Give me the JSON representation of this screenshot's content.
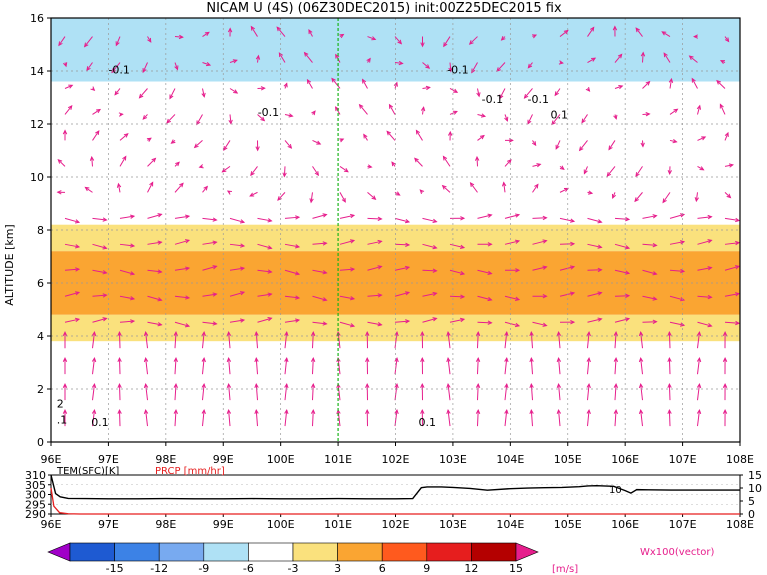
{
  "chart_data": {
    "title": "NICAM U (4S) (06Z30DEC2015) init:00Z25DEC2015 fix",
    "main": {
      "type": "heatmap",
      "ylabel": "ALTITUDE [km]",
      "xlim": [
        96,
        108
      ],
      "ylim": [
        0,
        16
      ],
      "x_ticks": [
        "96E",
        "97E",
        "98E",
        "99E",
        "100E",
        "101E",
        "102E",
        "103E",
        "104E",
        "105E",
        "106E",
        "107E",
        "108E"
      ],
      "y_ticks": [
        "0",
        "2",
        "4",
        "6",
        "8",
        "10",
        "12",
        "14",
        "16"
      ],
      "marker_longitude": 101,
      "bands": [
        {
          "y0": 13.6,
          "y1": 16.0,
          "u": -6
        },
        {
          "y0": 12.3,
          "y1": 13.6,
          "u": -3
        },
        {
          "y0": 8.2,
          "y1": 12.3,
          "u": 0
        },
        {
          "y0": 7.2,
          "y1": 8.2,
          "u": 3
        },
        {
          "y0": 4.8,
          "y1": 7.2,
          "u": 6
        },
        {
          "y0": 3.8,
          "y1": 4.8,
          "u": 3
        },
        {
          "y0": 0.0,
          "y1": 3.8,
          "u": 0
        }
      ],
      "contour_labels": [
        {
          "x": 97.0,
          "y": 13.9,
          "text": "-0.1"
        },
        {
          "x": 99.6,
          "y": 12.3,
          "text": "-0.1"
        },
        {
          "x": 102.9,
          "y": 13.9,
          "text": "-0.1"
        },
        {
          "x": 103.5,
          "y": 12.8,
          "text": "-0.1"
        },
        {
          "x": 104.3,
          "y": 12.8,
          "text": "-0.1"
        },
        {
          "x": 104.7,
          "y": 12.2,
          "text": "0.1"
        },
        {
          "x": 96.7,
          "y": 0.6,
          "text": "0.1"
        },
        {
          "x": 102.4,
          "y": 0.6,
          "text": "0.1"
        },
        {
          "x": 96.1,
          "y": 1.3,
          "text": "2"
        },
        {
          "x": 96.1,
          "y": 0.7,
          "text": ".1"
        }
      ]
    },
    "bottom": {
      "type": "line",
      "label_tem": "TEM(SFC)[K]",
      "label_prcp": "PRCP [mm/hr]",
      "left_ticks": [
        "310",
        "305",
        "300",
        "295",
        "290"
      ],
      "right_ticks": [
        "15",
        "10",
        "5",
        "0"
      ],
      "x_ticks": [
        "96E",
        "97E",
        "98E",
        "99E",
        "100E",
        "101E",
        "102E",
        "103E",
        "104E",
        "105E",
        "106E",
        "107E",
        "108E"
      ],
      "annotation": "10",
      "tem_series": {
        "x": [
          96.0,
          96.08,
          96.16,
          96.3,
          96.6,
          97.0,
          97.5,
          98.0,
          98.5,
          99.0,
          99.5,
          100.0,
          100.5,
          101.0,
          101.5,
          102.0,
          102.3,
          102.45,
          102.55,
          102.8,
          103.0,
          103.3,
          103.6,
          104.0,
          104.3,
          104.6,
          104.9,
          105.2,
          105.35,
          105.5,
          105.8,
          106.0,
          106.1,
          106.2,
          106.4,
          106.8,
          107.5,
          108.0
        ],
        "y": [
          310.0,
          300.5,
          298.8,
          298.0,
          297.9,
          297.8,
          297.8,
          297.9,
          297.8,
          297.8,
          297.9,
          297.8,
          297.8,
          297.9,
          297.8,
          297.8,
          297.9,
          303.5,
          303.9,
          303.9,
          303.6,
          303.1,
          302.2,
          303.0,
          303.3,
          303.5,
          303.6,
          304.0,
          304.4,
          304.5,
          304.2,
          302.0,
          300.7,
          302.5,
          302.4,
          302.3,
          302.3,
          302.3
        ]
      },
      "prcp_series": {
        "x": [
          96.0,
          96.05,
          96.15,
          96.3,
          96.5,
          97.0,
          100.0,
          103.0,
          106.0,
          108.0
        ],
        "y": [
          10.0,
          3.0,
          0.5,
          0.1,
          0.0,
          0.0,
          0.0,
          0.0,
          0.0,
          0.0
        ]
      }
    },
    "colorbar": {
      "labels": [
        "-15",
        "-12",
        "-9",
        "-6",
        "-3",
        "3",
        "6",
        "9",
        "12",
        "15"
      ],
      "colors": [
        "#a000c8",
        "#1e5ad2",
        "#3c82e6",
        "#78aaf0",
        "#afe1f5",
        "#ffffff",
        "#fae17d",
        "#faa532",
        "#ff5a1e",
        "#e61e1e",
        "#b40000",
        "#e61e8c"
      ],
      "unit": "[m/s]",
      "vector_label": "Wx100(vector)"
    }
  }
}
